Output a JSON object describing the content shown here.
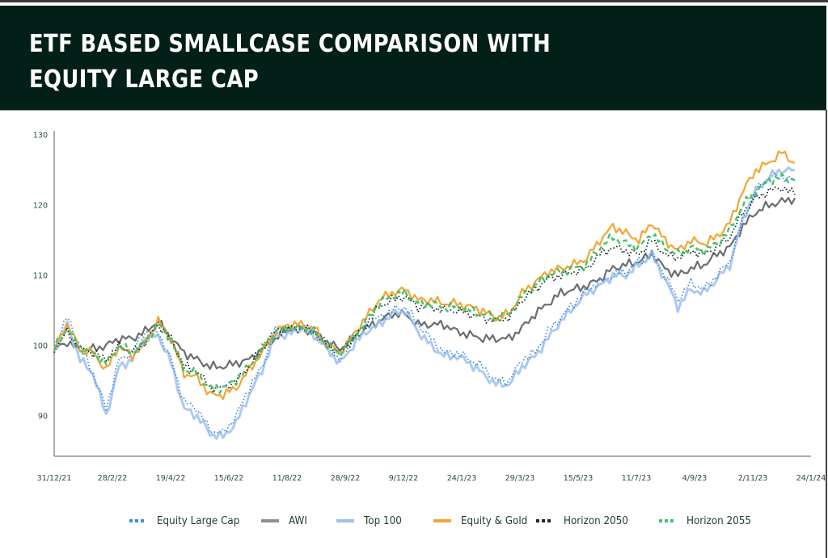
{
  "header": {
    "title": "ETF BASED SMALLCASE COMPARISON WITH EQUITY LARGE CAP"
  },
  "chart_data": {
    "type": "line",
    "title": "ETF BASED SMALLCASE COMPARISON WITH EQUITY LARGE CAP",
    "xlabel": "",
    "ylabel": "",
    "ylim": [
      84,
      131
    ],
    "yticks": [
      90,
      100,
      110,
      120,
      130
    ],
    "xtick_labels": [
      "31/12/21",
      "28/2/22",
      "19/4/22",
      "15/6/22",
      "11/8/22",
      "28/9/22",
      "9/12/22",
      "24/1/23",
      "29/3/23",
      "15/5/23",
      "11/7/23",
      "4/9/23",
      "2/11/23",
      "24/1/24"
    ],
    "grid": false,
    "legend_position": "bottom",
    "x": [
      "31/12/21",
      "14/1/22",
      "28/1/22",
      "11/2/22",
      "28/2/22",
      "14/3/22",
      "28/3/22",
      "8/4/22",
      "19/4/22",
      "2/5/22",
      "13/5/22",
      "27/5/22",
      "8/6/22",
      "15/6/22",
      "24/6/22",
      "8/7/22",
      "22/7/22",
      "2/8/22",
      "11/8/22",
      "24/8/22",
      "7/9/22",
      "19/9/22",
      "28/9/22",
      "12/10/22",
      "27/10/22",
      "10/11/22",
      "24/11/22",
      "9/12/22",
      "21/12/22",
      "4/1/23",
      "13/1/23",
      "24/1/23",
      "7/2/23",
      "21/2/23",
      "8/3/23",
      "20/3/23",
      "29/3/23",
      "12/4/23",
      "26/4/23",
      "15/5/23",
      "29/5/23",
      "12/6/23",
      "26/6/23",
      "11/7/23",
      "25/7/23",
      "7/8/23",
      "21/8/23",
      "4/9/23",
      "18/9/23",
      "3/10/23",
      "17/10/23",
      "2/11/23",
      "16/11/23",
      "30/11/23",
      "14/12/23",
      "28/12/23",
      "10/1/24",
      "24/1/24"
    ],
    "series": [
      {
        "name": "Equity Large Cap",
        "color": "#3f8fdc",
        "style": "dotted",
        "values": [
          100,
          104,
          100,
          96,
          91,
          98,
          99,
          102,
          102,
          98,
          92,
          91,
          88,
          87.5,
          90,
          94,
          97,
          102,
          102,
          103,
          102,
          100,
          98,
          101,
          103,
          104,
          105,
          105.5,
          103,
          101,
          99,
          99,
          98,
          97,
          95,
          95,
          98,
          99,
          102,
          104,
          106,
          108,
          109,
          110,
          110.5,
          112,
          113,
          110,
          106.5,
          109,
          108,
          110,
          112,
          118,
          122,
          124,
          124,
          123.5
        ]
      },
      {
        "name": "AWI",
        "color": "#6b6e70",
        "style": "solid",
        "values": [
          99.5,
          100.5,
          99.5,
          99.5,
          100,
          101,
          101,
          102,
          103.5,
          101,
          99,
          98,
          97,
          97,
          97.5,
          98,
          99.5,
          101,
          102.5,
          102.5,
          102,
          100.5,
          99.5,
          101,
          102.5,
          103.5,
          104.5,
          104.5,
          103,
          103,
          103,
          102,
          101.5,
          101,
          101,
          101,
          102.5,
          104.5,
          106,
          107.5,
          108,
          108.5,
          109.5,
          111,
          111.5,
          112,
          113,
          111,
          110,
          111,
          111.5,
          113,
          114,
          117,
          119,
          120,
          120.5,
          121
        ]
      },
      {
        "name": "Top 100",
        "color": "#9ebfef",
        "style": "solid",
        "values": [
          99.5,
          103,
          98,
          96,
          90,
          97,
          98,
          101,
          101.5,
          97.5,
          91,
          90,
          87.5,
          87,
          89,
          93,
          96.5,
          101.5,
          101.5,
          102.5,
          101.5,
          99.5,
          97.5,
          100,
          102,
          103,
          104.5,
          105,
          102,
          100,
          98.5,
          98.5,
          97.5,
          96,
          94.5,
          94.5,
          97,
          98.5,
          101,
          103.5,
          105.5,
          107.5,
          108.5,
          110,
          110,
          111.5,
          113,
          109.5,
          105.5,
          108,
          107.5,
          109.5,
          111.5,
          118,
          122,
          124,
          125,
          125
        ]
      },
      {
        "name": "Equity & Gold",
        "color": "#f5a431",
        "style": "solid",
        "values": [
          99.5,
          103,
          99.5,
          99,
          96.5,
          100,
          98.5,
          100.5,
          103.5,
          101,
          96,
          95.5,
          93,
          93,
          94,
          96.5,
          99,
          102,
          103,
          103,
          102.5,
          100,
          99,
          101.5,
          104,
          106.5,
          107.5,
          108,
          106.5,
          106.5,
          106,
          106,
          105.5,
          105,
          104,
          104.5,
          107.5,
          109,
          110.5,
          111,
          111.5,
          112.5,
          115,
          117,
          116,
          115,
          117.5,
          115,
          113.5,
          115,
          114.5,
          115.5,
          117.5,
          122,
          125,
          126,
          127.5,
          126
        ]
      },
      {
        "name": "Horizon 2050",
        "color": "#1b2a24",
        "style": "dotted",
        "values": [
          99.5,
          102,
          99.5,
          99,
          98,
          100,
          99,
          100.5,
          103,
          101,
          97,
          96.5,
          94,
          94,
          95,
          97,
          99.5,
          102,
          102.5,
          102.5,
          102,
          100,
          99,
          101,
          103,
          105.5,
          106.5,
          107,
          105.5,
          105.5,
          105,
          105,
          104.5,
          104,
          103.5,
          104,
          106.5,
          108,
          109.5,
          110,
          110.5,
          111,
          113,
          114,
          113.5,
          113,
          115,
          113,
          112.5,
          113.5,
          113,
          114,
          115.5,
          119,
          121,
          122,
          122.5,
          121.5
        ]
      },
      {
        "name": "Horizon 2055",
        "color": "#47c16a",
        "style": "dashed",
        "values": [
          99.5,
          102.5,
          99.5,
          99,
          97.5,
          100,
          99,
          100.5,
          103,
          101,
          96.5,
          96,
          94,
          94,
          95,
          97,
          99.5,
          102,
          102.5,
          102.5,
          102,
          100,
          99,
          101,
          103.5,
          106,
          107,
          107.5,
          106,
          106,
          105.5,
          105.5,
          105,
          104.5,
          104,
          104.5,
          107,
          108.5,
          110,
          110.5,
          111,
          111.5,
          114,
          115.5,
          114.5,
          114,
          116,
          114,
          113,
          114,
          113.5,
          114.5,
          116.5,
          120,
          122,
          123.5,
          124,
          123.5
        ]
      }
    ]
  },
  "legend": {
    "items": [
      {
        "label": "Equity Large Cap",
        "color": "#3f8fdc",
        "style": "dotted"
      },
      {
        "label": "AWI",
        "color": "#8e9092",
        "style": "solid"
      },
      {
        "label": "Top 100",
        "color": "#9ebfef",
        "style": "solid"
      },
      {
        "label": "Equity & Gold",
        "color": "#f5a431",
        "style": "solid"
      },
      {
        "label": "Horizon 2050",
        "color": "#1b2a24",
        "style": "dotted"
      },
      {
        "label": "Horizon 2055",
        "color": "#47c16a",
        "style": "dotted"
      }
    ]
  },
  "colors": {
    "header_bg": "#021f18",
    "header_text": "#ffffff",
    "axis": "#7a7a7a",
    "tick_text": "#2f4a40"
  }
}
